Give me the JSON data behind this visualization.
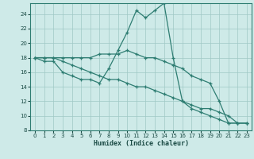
{
  "xlabel": "Humidex (Indice chaleur)",
  "xlim": [
    -0.5,
    23.5
  ],
  "ylim": [
    8,
    25.5
  ],
  "yticks": [
    8,
    10,
    12,
    14,
    16,
    18,
    20,
    22,
    24
  ],
  "xticks": [
    0,
    1,
    2,
    3,
    4,
    5,
    6,
    7,
    8,
    9,
    10,
    11,
    12,
    13,
    14,
    15,
    16,
    17,
    18,
    19,
    20,
    21,
    22,
    23
  ],
  "bg_color": "#ceeae8",
  "grid_color": "#a0c8c5",
  "line_color": "#2e7d72",
  "lines": [
    {
      "x": [
        0,
        1,
        2,
        3,
        4,
        5,
        6,
        7,
        8,
        9,
        10,
        11,
        12,
        13,
        14,
        15,
        16,
        17,
        18,
        19,
        20,
        21,
        22,
        23
      ],
      "y": [
        18,
        18,
        18,
        17.5,
        17,
        16.5,
        16,
        15.5,
        15,
        15,
        14.5,
        14,
        14,
        13.5,
        13,
        12.5,
        12,
        11.5,
        11,
        11,
        10.5,
        10,
        9,
        9
      ]
    },
    {
      "x": [
        0,
        1,
        2,
        3,
        4,
        5,
        6,
        7,
        8,
        9,
        10,
        11,
        12,
        13,
        14,
        15,
        16,
        17,
        18,
        19,
        20,
        21,
        22,
        23
      ],
      "y": [
        18,
        17.5,
        17.5,
        16,
        15.5,
        15,
        15,
        14.5,
        16.5,
        19,
        21.5,
        24.5,
        23.5,
        24.5,
        25.5,
        18,
        12,
        11,
        10.5,
        10,
        9.5,
        9,
        9,
        9
      ]
    },
    {
      "x": [
        0,
        1,
        2,
        3,
        4,
        5,
        6,
        7,
        8,
        9,
        10,
        11,
        12,
        13,
        14,
        15,
        16,
        17,
        18,
        19,
        20,
        21,
        22,
        23
      ],
      "y": [
        18,
        18,
        18,
        18,
        18,
        18,
        18,
        18.5,
        18.5,
        18.5,
        19,
        18.5,
        18,
        18,
        17.5,
        17,
        16.5,
        15.5,
        15,
        14.5,
        12,
        9,
        9,
        9
      ]
    }
  ]
}
